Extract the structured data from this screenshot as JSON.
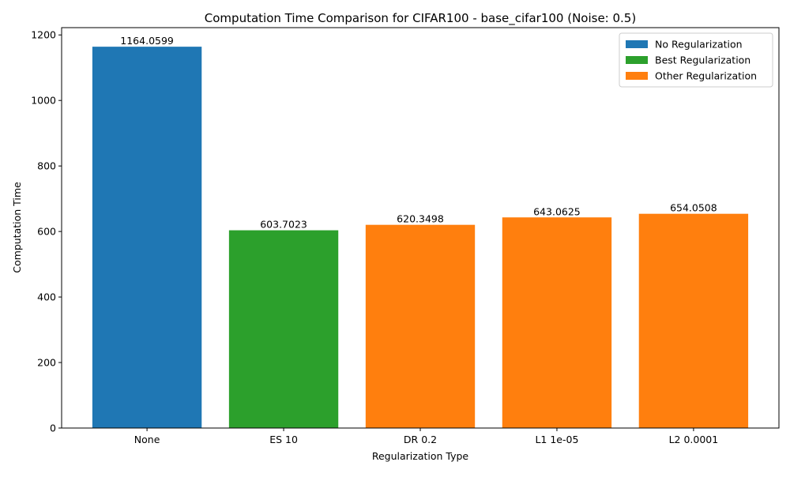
{
  "chart_data": {
    "type": "bar",
    "title": "Computation Time Comparison for CIFAR100 - base_cifar100 (Noise: 0.5)",
    "xlabel": "Regularization Type",
    "ylabel": "Computation Time",
    "categories": [
      "None",
      "ES 10",
      "DR 0.2",
      "L1 1e-05",
      "L2 0.0001"
    ],
    "values": [
      1164.0599,
      603.7023,
      620.3498,
      643.0625,
      654.0508
    ],
    "value_labels": [
      "1164.0599",
      "603.7023",
      "620.3498",
      "643.0625",
      "654.0508"
    ],
    "bar_groups": [
      "No Regularization",
      "Best Regularization",
      "Other Regularization",
      "Other Regularization",
      "Other Regularization"
    ],
    "ylim": [
      0,
      1222.26
    ],
    "yticks": [
      0,
      200,
      400,
      600,
      800,
      1000,
      1200
    ],
    "grid": false,
    "legend": {
      "placement": "top-right",
      "entries": [
        {
          "label": "No Regularization",
          "color": "#1f77b4"
        },
        {
          "label": "Best Regularization",
          "color": "#2ca02c"
        },
        {
          "label": "Other Regularization",
          "color": "#ff7f0e"
        }
      ]
    }
  }
}
